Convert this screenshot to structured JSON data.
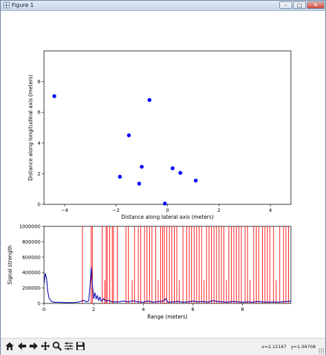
{
  "window": {
    "title": "Figure 1",
    "controls": [
      "minimize",
      "maximize",
      "close"
    ]
  },
  "toolbar": {
    "buttons": [
      {
        "name": "home",
        "icon": "home-icon"
      },
      {
        "name": "back",
        "icon": "arrow-left-icon"
      },
      {
        "name": "forward",
        "icon": "arrow-right-icon"
      },
      {
        "name": "pan",
        "icon": "move-icon"
      },
      {
        "name": "zoom",
        "icon": "magnifier-icon"
      },
      {
        "name": "configure-subplots",
        "icon": "sliders-icon"
      },
      {
        "name": "save",
        "icon": "floppy-disk-icon"
      }
    ],
    "coord_x": "x=2.12167",
    "coord_y": "y=1.06708"
  },
  "chart_data": [
    {
      "type": "scatter",
      "xlabel": "Distance along lateral axis (meters)",
      "ylabel": "Distance along longitudinal axis (meters)",
      "xlim": [
        -4.8,
        4.8
      ],
      "ylim": [
        0,
        10
      ],
      "xticks": [
        -4,
        -2,
        0,
        2,
        4
      ],
      "yticks": [
        0,
        2,
        4,
        6,
        8
      ],
      "grid": false,
      "color": "#0000ff",
      "points": [
        {
          "x": -4.4,
          "y": 7.05
        },
        {
          "x": -0.7,
          "y": 6.8
        },
        {
          "x": -1.5,
          "y": 4.5
        },
        {
          "x": -1.0,
          "y": 2.45
        },
        {
          "x": 0.2,
          "y": 2.35
        },
        {
          "x": 0.5,
          "y": 2.05
        },
        {
          "x": -1.85,
          "y": 1.8
        },
        {
          "x": -1.1,
          "y": 1.35
        },
        {
          "x": 1.1,
          "y": 1.55
        },
        {
          "x": -0.1,
          "y": 0.05
        }
      ]
    },
    {
      "type": "line",
      "xlabel": "Range (meters)",
      "ylabel": "Signal strength",
      "xlim": [
        0,
        9.95
      ],
      "ylim": [
        0,
        1000000
      ],
      "xticks": [
        0,
        2,
        4,
        6,
        8
      ],
      "yticks": [
        0,
        200000,
        400000,
        600000,
        800000,
        1000000
      ],
      "ytick_labels": [
        "0",
        "200000",
        "400000",
        "600000",
        "800000",
        "1000000"
      ],
      "grid": false,
      "series": [
        {
          "color": "#ff0000",
          "x": [
            0,
            1.35,
            1.5,
            1.6,
            1.9,
            1.95,
            2.0,
            2.1,
            2.2,
            2.35,
            2.45,
            2.5,
            2.6,
            2.7,
            2.8,
            2.95,
            3.3,
            3.4,
            3.5,
            3.6,
            3.7,
            3.8,
            3.9,
            4.0,
            4.1,
            4.2,
            4.3,
            4.4,
            4.5,
            4.6,
            4.7,
            4.75,
            4.85,
            4.9,
            5.0,
            5.1,
            5.2,
            5.25,
            5.3,
            5.4,
            5.5,
            5.6,
            5.7,
            5.8,
            5.9,
            6.0,
            6.05,
            6.1,
            6.2,
            6.3,
            6.4,
            6.5,
            6.6,
            6.7,
            6.8,
            6.9,
            7.0,
            7.1,
            7.2,
            7.3,
            7.4,
            7.5,
            7.55,
            7.6,
            7.7,
            7.8,
            7.9,
            8.0,
            8.1,
            8.2,
            8.3,
            8.4,
            8.5,
            8.6,
            8.7,
            8.8,
            8.9,
            9.0,
            9.1,
            9.2,
            9.3,
            9.4,
            9.5,
            9.6,
            9.7,
            9.8,
            9.9
          ],
          "y": [
            0,
            0,
            0,
            0,
            0,
            0,
            0,
            0,
            0,
            0,
            0,
            0,
            0,
            0,
            0,
            0,
            0,
            0,
            0,
            0,
            0,
            0,
            0,
            0,
            0,
            0,
            0,
            0,
            0,
            0,
            0,
            0,
            0,
            0,
            0,
            0,
            0,
            0,
            0,
            0,
            0,
            0,
            0,
            0,
            0,
            0,
            0,
            0,
            0,
            0,
            0,
            0,
            0,
            0,
            0,
            0,
            0,
            0,
            0,
            0,
            0,
            0,
            0,
            0,
            0,
            0,
            0,
            0,
            0,
            0,
            0,
            0,
            0,
            0,
            0,
            0,
            0,
            0,
            0,
            0,
            0,
            0,
            0,
            0,
            0,
            0,
            0
          ]
        },
        {
          "color": "#0000aa",
          "x": [
            0,
            0.05,
            0.1,
            0.15,
            0.2,
            0.3,
            0.4,
            0.6,
            0.8,
            1.0,
            1.2,
            1.4,
            1.6,
            1.7,
            1.8,
            1.85,
            1.9,
            1.95,
            2.0,
            2.05,
            2.1,
            2.15,
            2.2,
            2.25,
            2.3,
            2.4,
            2.5,
            2.6,
            2.7,
            2.8,
            3.0,
            3.2,
            3.4,
            3.6,
            3.8,
            4.0,
            4.2,
            4.4,
            4.6,
            4.8,
            4.9,
            5.0,
            5.2,
            5.4,
            5.6,
            5.8,
            6.0,
            6.2,
            6.4,
            6.6,
            6.8,
            7.0,
            7.2,
            7.4,
            7.6,
            7.8,
            8.0,
            8.2,
            8.4,
            8.6,
            8.8,
            9.0,
            9.2,
            9.4,
            9.6,
            9.8,
            9.95
          ],
          "y": [
            250000,
            390000,
            330000,
            160000,
            70000,
            25000,
            15000,
            15000,
            12000,
            10000,
            12000,
            18000,
            40000,
            20000,
            30000,
            200000,
            470000,
            250000,
            60000,
            140000,
            60000,
            100000,
            40000,
            80000,
            30000,
            60000,
            30000,
            40000,
            25000,
            20000,
            20000,
            30000,
            20000,
            35000,
            20000,
            15000,
            30000,
            15000,
            25000,
            30000,
            60000,
            15000,
            20000,
            25000,
            15000,
            20000,
            30000,
            20000,
            25000,
            15000,
            35000,
            25000,
            20000,
            15000,
            25000,
            20000,
            15000,
            20000,
            15000,
            25000,
            20000,
            15000,
            20000,
            15000,
            20000,
            25000,
            30000
          ]
        }
      ]
    }
  ]
}
